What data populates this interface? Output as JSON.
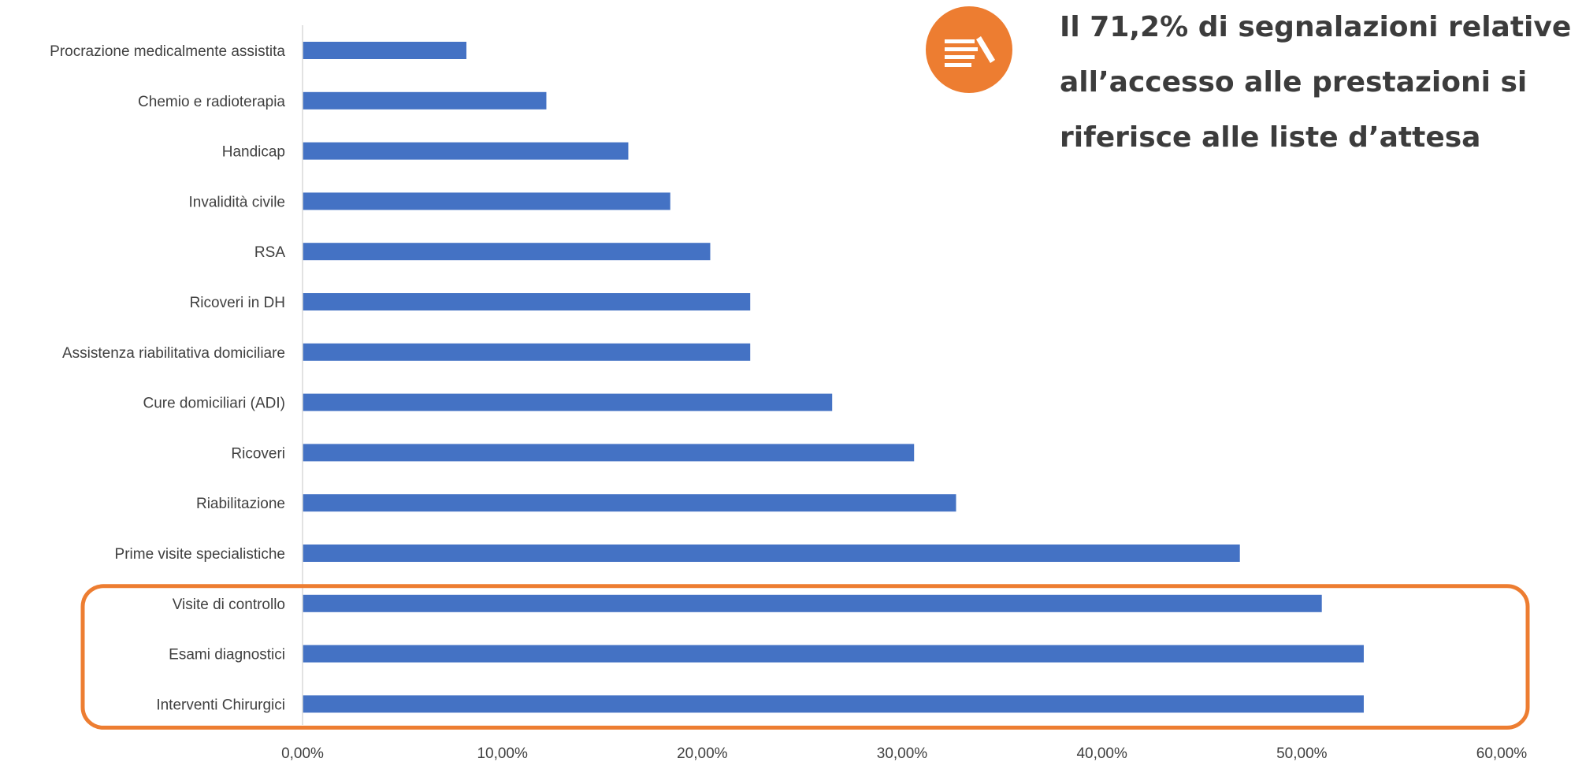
{
  "headline": {
    "lines": [
      "Il 71,2% di segnalazioni relative",
      "all’accesso alle prestazioni si",
      "riferisce alle liste d’attesa"
    ],
    "icon": "list-edit-icon",
    "badge_color": "#ED7D31"
  },
  "chart_data": {
    "type": "bar",
    "orientation": "horizontal",
    "categories": [
      "Procrazione medicalmente assistita",
      "Chemio e radioterapia",
      "Handicap",
      "Invalidità civile",
      "RSA",
      "Ricoveri in DH",
      "Assistenza riabilitativa domiciliare",
      "Cure domiciliari (ADI)",
      "Ricoveri",
      "Riabilitazione",
      "Prime visite specialistiche",
      "Visite di controllo",
      "Esami diagnostici",
      "Interventi Chirurgici"
    ],
    "values": [
      8.2,
      12.2,
      16.3,
      18.4,
      20.4,
      22.4,
      22.4,
      26.5,
      30.6,
      32.7,
      46.9,
      51.0,
      53.1,
      53.1
    ],
    "xlim": [
      0,
      60
    ],
    "xticks": [
      "0,00%",
      "10,00%",
      "20,00%",
      "30,00%",
      "40,00%",
      "50,00%",
      "60,00%"
    ],
    "xlabel": "",
    "ylabel": "",
    "title": "",
    "grid": false,
    "bar_color": "#4472C4",
    "highlight": {
      "categories": [
        "Visite di controllo",
        "Esami diagnostici",
        "Interventi Chirurgici"
      ],
      "color": "#ED7D31"
    }
  }
}
